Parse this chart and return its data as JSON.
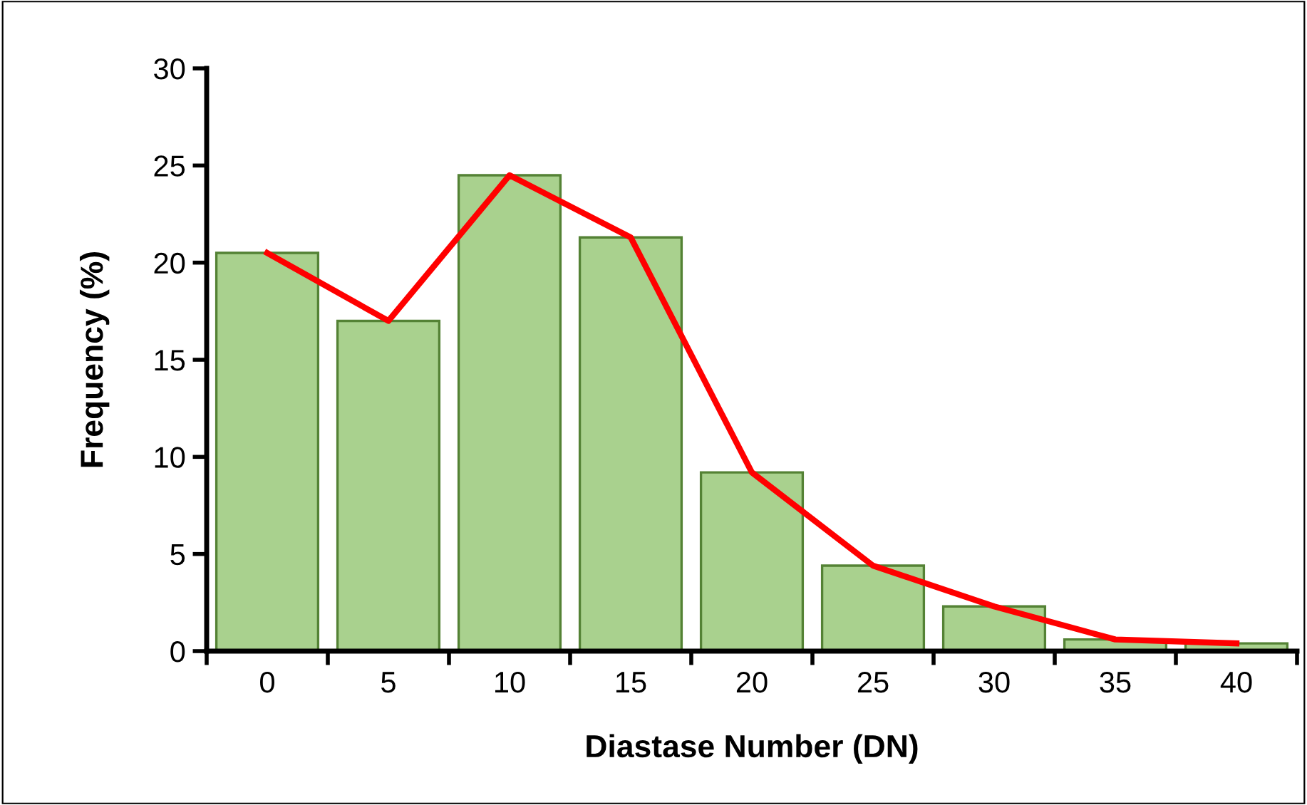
{
  "chart_data": {
    "type": "bar",
    "xlabel": "Diastase Number (DN)",
    "ylabel": "Frequency (%)",
    "categories": [
      "0",
      "5",
      "10",
      "15",
      "20",
      "25",
      "30",
      "35",
      "40"
    ],
    "series": [
      {
        "color": "#a9d18e",
        "values": [
          20.5,
          17.0,
          24.5,
          21.3,
          9.2,
          4.4,
          2.3,
          0.6,
          0.4
        ]
      },
      {
        "type": "line",
        "color": "#ff0000",
        "values": [
          20.5,
          17.0,
          24.5,
          21.3,
          9.2,
          4.4,
          2.3,
          0.6,
          0.4
        ]
      }
    ],
    "ylim": [
      0,
      30
    ],
    "yticks": [
      0,
      5,
      10,
      15,
      20,
      25,
      30
    ],
    "grid": false,
    "legend": false,
    "marker": "none",
    "line_style": "solid"
  }
}
